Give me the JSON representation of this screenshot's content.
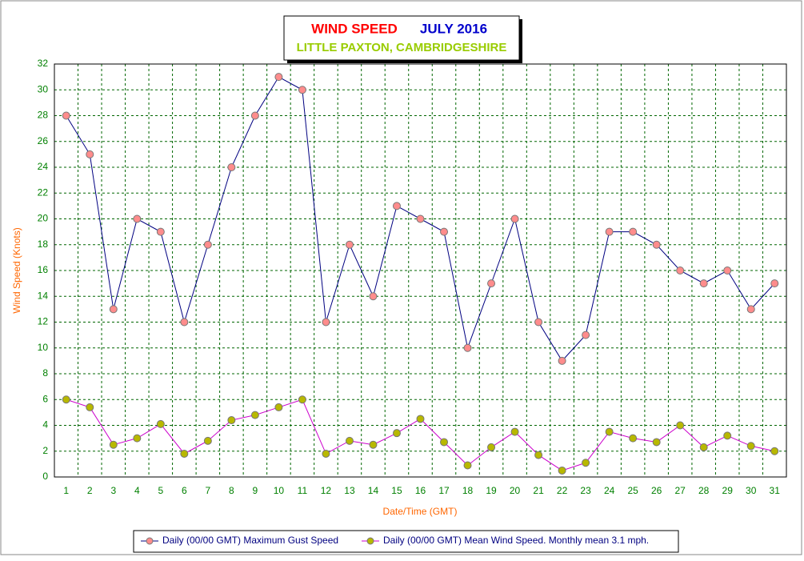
{
  "chart_data": {
    "type": "line",
    "title": "WIND SPEED",
    "period": "JULY 2016",
    "subtitle": "LITTLE PAXTON, CAMBRIDGESHIRE",
    "x_label": "Date/Time (GMT)",
    "y_label": "Wind Speed (Knots)",
    "categories": [
      "1",
      "2",
      "3",
      "4",
      "5",
      "6",
      "7",
      "8",
      "9",
      "10",
      "11",
      "12",
      "13",
      "14",
      "15",
      "16",
      "17",
      "18",
      "19",
      "20",
      "21",
      "22",
      "23",
      "24",
      "25",
      "26",
      "27",
      "28",
      "29",
      "30",
      "31"
    ],
    "series": [
      {
        "name": "Daily (00/00 GMT) Maximum Gust Speed",
        "color": "#000080",
        "marker_color": "#ff8c8c",
        "values": [
          28,
          25,
          13,
          20,
          19,
          12,
          18,
          24,
          28,
          31,
          30,
          12,
          18,
          14,
          21,
          20,
          19,
          10,
          15,
          20,
          12,
          9,
          11,
          19,
          19,
          18,
          16,
          15,
          16,
          13,
          15
        ]
      },
      {
        "name": "Daily (00/00 GMT) Mean Wind Speed. Monthly mean 3.1 mph.",
        "color": "#cc00cc",
        "marker_color": "#b8b800",
        "values": [
          6,
          5.4,
          2.5,
          3,
          4.1,
          1.8,
          2.8,
          4.4,
          4.8,
          5.4,
          6,
          1.8,
          2.8,
          2.5,
          3.4,
          4.5,
          2.7,
          0.9,
          2.3,
          3.5,
          1.7,
          0.5,
          1.1,
          3.5,
          3,
          2.7,
          4,
          2.3,
          3.2,
          2.4,
          2.0
        ]
      }
    ],
    "ylim": [
      0,
      32
    ],
    "yticks": [
      0,
      2,
      4,
      6,
      8,
      10,
      12,
      14,
      16,
      18,
      20,
      22,
      24,
      26,
      28,
      30,
      32
    ],
    "grid": true
  }
}
